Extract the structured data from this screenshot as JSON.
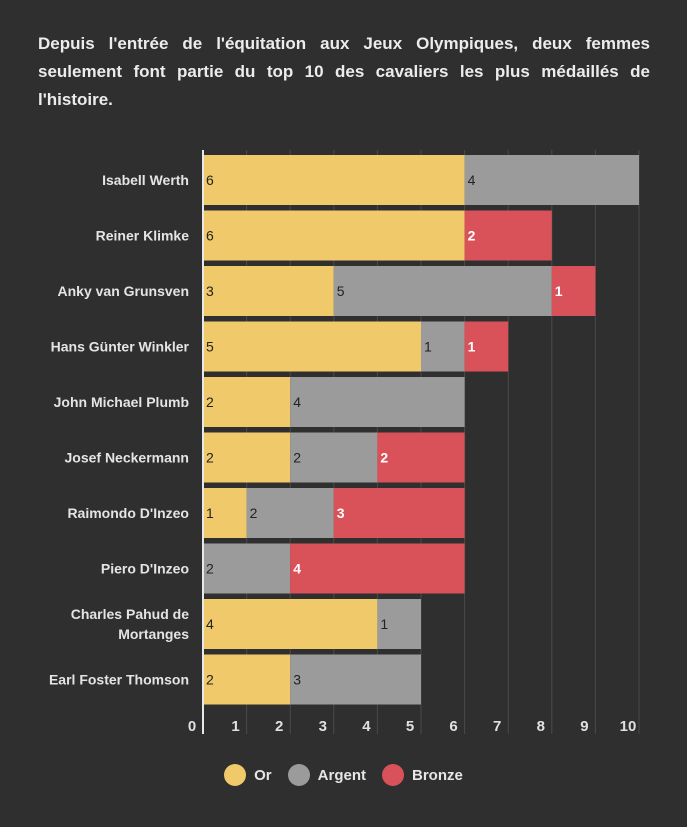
{
  "title": "Depuis l'entrée de l'équitation aux Jeux Olympiques, deux femmes seulement font partie du top 10 des cavaliers les plus médaillés de l'histoire.",
  "chart_data": {
    "type": "bar",
    "orientation": "horizontal",
    "stacked": true,
    "categories": [
      "Isabell Werth",
      "Reiner Klimke",
      "Anky van Grunsven",
      "Hans Günter Winkler",
      "John Michael Plumb",
      "Josef Neckermann",
      "Raimondo D'Inzeo",
      "Piero D'Inzeo",
      "Charles Pahud de Mortanges",
      "Earl Foster Thomson"
    ],
    "series": [
      {
        "name": "Or",
        "color": "#f0c96a",
        "label_color": "#222222",
        "values": [
          6,
          6,
          3,
          5,
          2,
          2,
          1,
          0,
          4,
          2
        ]
      },
      {
        "name": "Argent",
        "color": "#9b9b9b",
        "label_color": "#222222",
        "values": [
          4,
          0,
          5,
          1,
          4,
          2,
          2,
          2,
          1,
          3
        ]
      },
      {
        "name": "Bronze",
        "color": "#d9525a",
        "label_color": "#ffffff",
        "values": [
          0,
          2,
          1,
          1,
          0,
          2,
          3,
          4,
          0,
          0
        ]
      }
    ],
    "xlim": [
      0,
      10
    ],
    "xticks": [
      0,
      1,
      2,
      3,
      4,
      5,
      6,
      7,
      8,
      9,
      10
    ],
    "grid": true,
    "legend_position": "bottom-center",
    "xlabel": "",
    "ylabel": ""
  }
}
